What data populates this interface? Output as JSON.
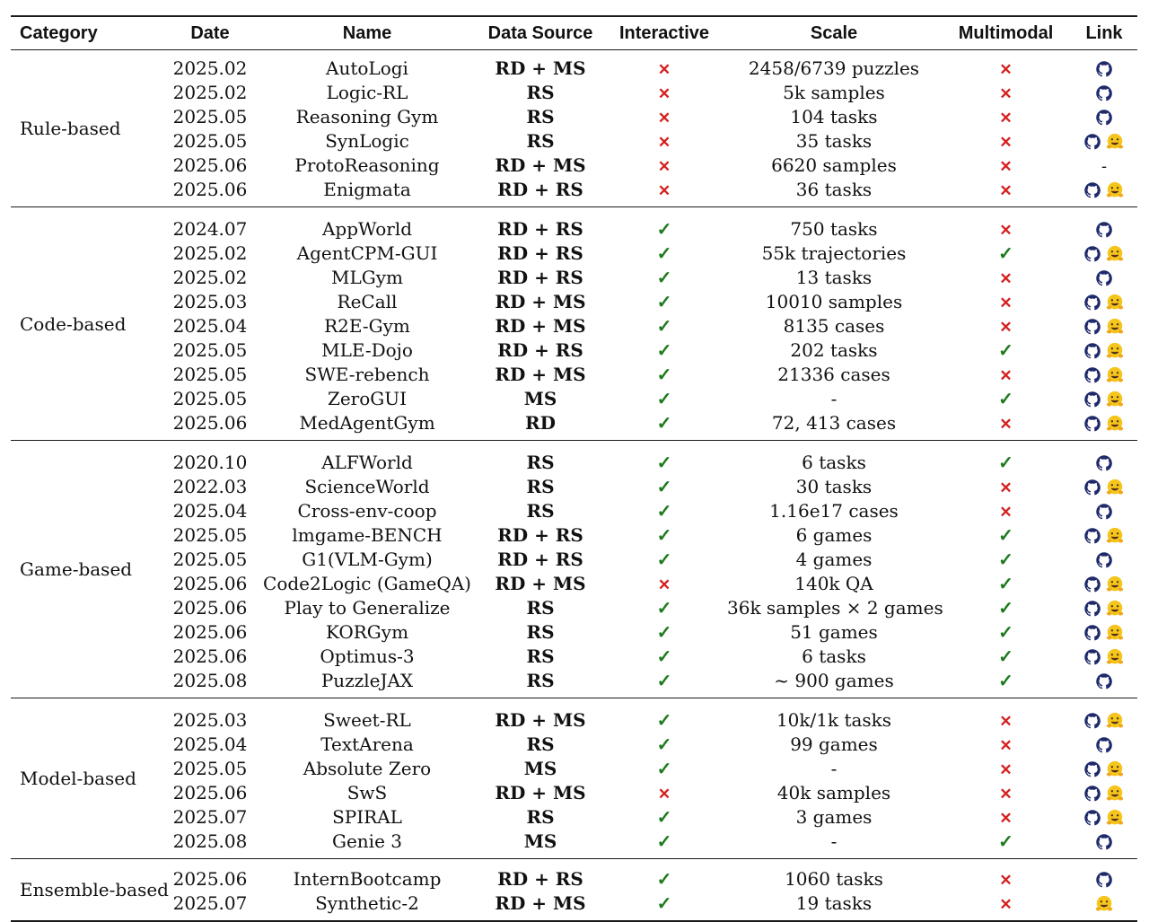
{
  "header": {
    "category": "Category",
    "date": "Date",
    "name": "Name",
    "data_source": "Data Source",
    "interactive": "Interactive",
    "scale": "Scale",
    "multimodal": "Multimodal",
    "link": "Link"
  },
  "marks": {
    "yes": "✓",
    "no": "✕",
    "none": "-"
  },
  "colors": {
    "yes": "#1d7a1d",
    "no": "#d62020",
    "github": "#1f2a6b",
    "hf": "#f5c51b"
  },
  "groups": [
    {
      "category": "Rule-based",
      "rows": [
        {
          "date": "2025.02",
          "name": "AutoLogi",
          "source": "RD + MS",
          "interactive": false,
          "scale": "2458/6739 puzzles",
          "multimodal": false,
          "links": [
            "github"
          ]
        },
        {
          "date": "2025.02",
          "name": "Logic-RL",
          "source": "RS",
          "interactive": false,
          "scale": "5k samples",
          "multimodal": false,
          "links": [
            "github"
          ]
        },
        {
          "date": "2025.05",
          "name": "Reasoning Gym",
          "source": "RS",
          "interactive": false,
          "scale": "104 tasks",
          "multimodal": false,
          "links": [
            "github"
          ]
        },
        {
          "date": "2025.05",
          "name": "SynLogic",
          "source": "RS",
          "interactive": false,
          "scale": "35 tasks",
          "multimodal": false,
          "links": [
            "github",
            "huggingface"
          ]
        },
        {
          "date": "2025.06",
          "name": "ProtoReasoning",
          "source": "RD + MS",
          "interactive": false,
          "scale": "6620 samples",
          "multimodal": false,
          "links": []
        },
        {
          "date": "2025.06",
          "name": "Enigmata",
          "source": "RD + RS",
          "interactive": false,
          "scale": "36 tasks",
          "multimodal": false,
          "links": [
            "github",
            "huggingface"
          ]
        }
      ]
    },
    {
      "category": "Code-based",
      "rows": [
        {
          "date": "2024.07",
          "name": "AppWorld",
          "source": "RD + RS",
          "interactive": true,
          "scale": "750 tasks",
          "multimodal": false,
          "links": [
            "github"
          ]
        },
        {
          "date": "2025.02",
          "name": "AgentCPM-GUI",
          "source": "RD + RS",
          "interactive": true,
          "scale": "55k trajectories",
          "multimodal": true,
          "links": [
            "github",
            "huggingface"
          ]
        },
        {
          "date": "2025.02",
          "name": "MLGym",
          "source": "RD + RS",
          "interactive": true,
          "scale": "13 tasks",
          "multimodal": false,
          "links": [
            "github"
          ]
        },
        {
          "date": "2025.03",
          "name": "ReCall",
          "source": "RD + MS",
          "interactive": true,
          "scale": "10010 samples",
          "multimodal": false,
          "links": [
            "github",
            "huggingface"
          ]
        },
        {
          "date": "2025.04",
          "name": "R2E-Gym",
          "source": "RD + MS",
          "interactive": true,
          "scale": "8135 cases",
          "multimodal": false,
          "links": [
            "github",
            "huggingface"
          ]
        },
        {
          "date": "2025.05",
          "name": "MLE-Dojo",
          "source": "RD + RS",
          "interactive": true,
          "scale": "202 tasks",
          "multimodal": true,
          "links": [
            "github",
            "huggingface"
          ]
        },
        {
          "date": "2025.05",
          "name": "SWE-rebench",
          "source": "RD + MS",
          "interactive": true,
          "scale": "21336 cases",
          "multimodal": false,
          "links": [
            "github",
            "huggingface"
          ]
        },
        {
          "date": "2025.05",
          "name": "ZeroGUI",
          "source": "MS",
          "interactive": true,
          "scale": "-",
          "multimodal": true,
          "links": [
            "github",
            "huggingface"
          ]
        },
        {
          "date": "2025.06",
          "name": "MedAgentGym",
          "source": "RD",
          "interactive": true,
          "scale": "72, 413 cases",
          "multimodal": false,
          "links": [
            "github",
            "huggingface"
          ]
        }
      ]
    },
    {
      "category": "Game-based",
      "rows": [
        {
          "date": "2020.10",
          "name": "ALFWorld",
          "source": "RS",
          "interactive": true,
          "scale": "6 tasks",
          "multimodal": true,
          "links": [
            "github"
          ]
        },
        {
          "date": "2022.03",
          "name": "ScienceWorld",
          "source": "RS",
          "interactive": true,
          "scale": "30 tasks",
          "multimodal": false,
          "links": [
            "github",
            "huggingface"
          ]
        },
        {
          "date": "2025.04",
          "name": "Cross-env-coop",
          "source": "RS",
          "interactive": true,
          "scale": "1.16e17 cases",
          "multimodal": false,
          "links": [
            "github"
          ]
        },
        {
          "date": "2025.05",
          "name": "lmgame-BENCH",
          "source": "RD + RS",
          "interactive": true,
          "scale": "6 games",
          "multimodal": true,
          "links": [
            "github",
            "huggingface"
          ]
        },
        {
          "date": "2025.05",
          "name": "G1(VLM-Gym)",
          "source": "RD + RS",
          "interactive": true,
          "scale": "4 games",
          "multimodal": true,
          "links": [
            "github"
          ]
        },
        {
          "date": "2025.06",
          "name": "Code2Logic (GameQA)",
          "source": "RD + MS",
          "interactive": false,
          "scale": "140k QA",
          "multimodal": true,
          "links": [
            "github",
            "huggingface"
          ]
        },
        {
          "date": "2025.06",
          "name": "Play to Generalize",
          "source": "RS",
          "interactive": true,
          "scale": "36k samples × 2 games",
          "multimodal": true,
          "links": [
            "github",
            "huggingface"
          ]
        },
        {
          "date": "2025.06",
          "name": "KORGym",
          "source": "RS",
          "interactive": true,
          "scale": "51 games",
          "multimodal": true,
          "links": [
            "github",
            "huggingface"
          ]
        },
        {
          "date": "2025.06",
          "name": "Optimus-3",
          "source": "RS",
          "interactive": true,
          "scale": "6 tasks",
          "multimodal": true,
          "links": [
            "github",
            "huggingface"
          ]
        },
        {
          "date": "2025.08",
          "name": "PuzzleJAX",
          "source": "RS",
          "interactive": true,
          "scale": "~ 900 games",
          "multimodal": true,
          "links": [
            "github"
          ]
        }
      ]
    },
    {
      "category": "Model-based",
      "rows": [
        {
          "date": "2025.03",
          "name": "Sweet-RL",
          "source": "RD + MS",
          "interactive": true,
          "scale": "10k/1k tasks",
          "multimodal": false,
          "links": [
            "github",
            "huggingface"
          ]
        },
        {
          "date": "2025.04",
          "name": "TextArena",
          "source": "RS",
          "interactive": true,
          "scale": "99 games",
          "multimodal": false,
          "links": [
            "github"
          ]
        },
        {
          "date": "2025.05",
          "name": "Absolute Zero",
          "source": "MS",
          "interactive": true,
          "scale": "-",
          "multimodal": false,
          "links": [
            "github",
            "huggingface"
          ]
        },
        {
          "date": "2025.06",
          "name": "SwS",
          "source": "RD + MS",
          "interactive": false,
          "scale": "40k samples",
          "multimodal": false,
          "links": [
            "github",
            "huggingface"
          ]
        },
        {
          "date": "2025.07",
          "name": "SPIRAL",
          "source": "RS",
          "interactive": true,
          "scale": "3 games",
          "multimodal": false,
          "links": [
            "github",
            "huggingface"
          ]
        },
        {
          "date": "2025.08",
          "name": "Genie 3",
          "source": "MS",
          "interactive": true,
          "scale": "-",
          "multimodal": true,
          "links": [
            "github"
          ]
        }
      ]
    },
    {
      "category": "Ensemble-based",
      "rows": [
        {
          "date": "2025.06",
          "name": "InternBootcamp",
          "source": "RD + RS",
          "interactive": true,
          "scale": "1060 tasks",
          "multimodal": false,
          "links": [
            "github"
          ]
        },
        {
          "date": "2025.07",
          "name": "Synthetic-2",
          "source": "RD + MS",
          "interactive": true,
          "scale": "19 tasks",
          "multimodal": false,
          "links": [
            "huggingface"
          ]
        }
      ]
    }
  ]
}
